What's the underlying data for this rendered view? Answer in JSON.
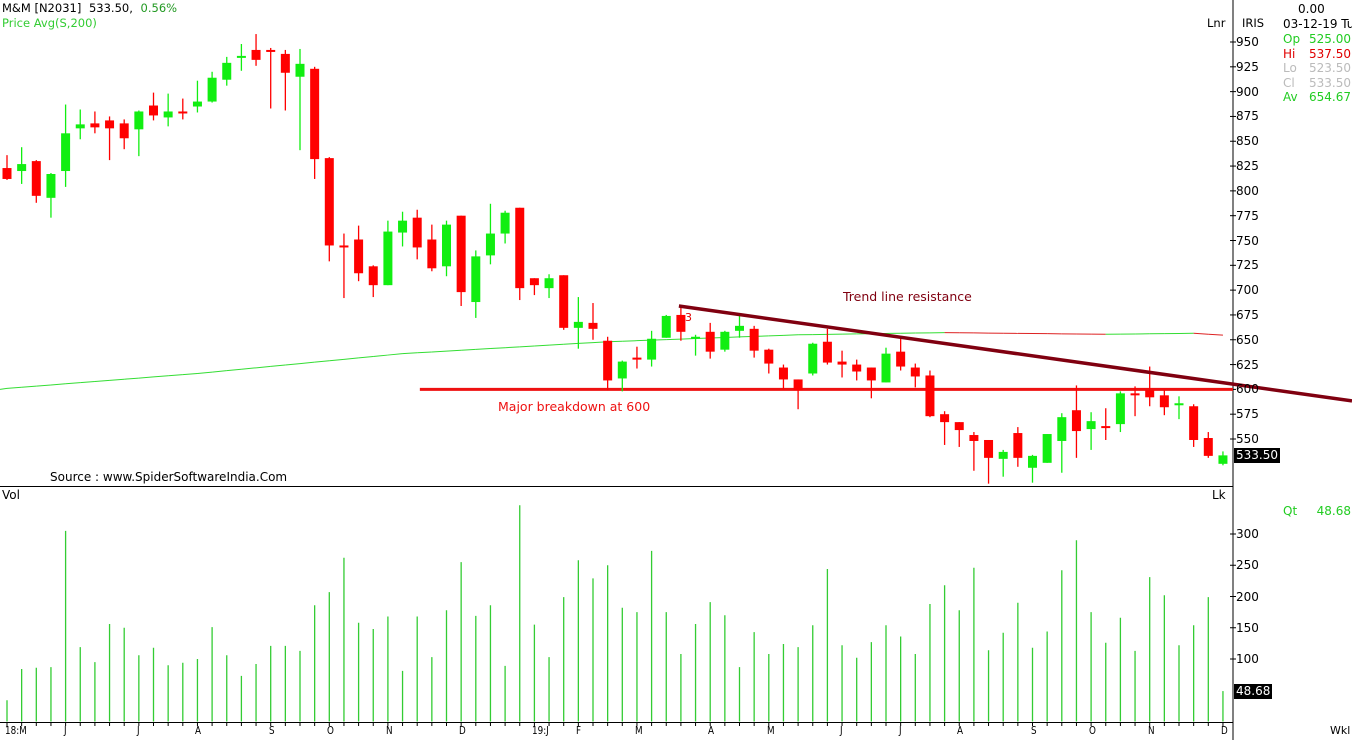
{
  "header": {
    "symbol": "M&M [N2031]",
    "last": "533.50,",
    "change": "0.56%",
    "indicator": "Price  Avg(S,200)"
  },
  "right_panel": {
    "scale_label": "Lnr",
    "chart_name": "IRIS",
    "value_top": "0.00",
    "date": "03-12-19 Tu",
    "ohlc": [
      {
        "label": "Op",
        "value": "525.00",
        "color": "#22cc22"
      },
      {
        "label": "Hi",
        "value": "537.50",
        "color": "#e00000"
      },
      {
        "label": "Lo",
        "value": "523.50",
        "color": "#bbbbbb"
      },
      {
        "label": "Cl",
        "value": "533.50",
        "color": "#bbbbbb"
      },
      {
        "label": "Av",
        "value": "654.67",
        "color": "#22cc22"
      }
    ],
    "last_price_box": "533.50",
    "volume_scale_label": "Lk",
    "qty_label": "Qt",
    "qty_value": "48.68",
    "last_volume_box": "48.68",
    "period_label": "Wkl"
  },
  "volume_panel": {
    "title": "Vol"
  },
  "annotations": {
    "source": "Source : www.SpiderSoftwareIndia.Com",
    "trend_label": "Trend line resistance",
    "breakdown_label": "Major breakdown at 600",
    "marker": "3"
  },
  "colors": {
    "up": "#11ee11",
    "down": "#ff0000",
    "trend": "#800010",
    "breakdown": "#ee1111",
    "ma_up": "#33dd33",
    "ma_down": "#dd2222",
    "volume": "#33cc33"
  },
  "chart_data": {
    "type": "candlestick",
    "title": "M&M [N2031] weekly",
    "price_axis": {
      "ylim": [
        510,
        960
      ],
      "ticks": [
        950,
        925,
        900,
        875,
        850,
        825,
        800,
        775,
        750,
        725,
        700,
        675,
        650,
        625,
        600,
        575,
        550
      ]
    },
    "volume_axis": {
      "ylim": [
        0,
        350
      ],
      "ticks": [
        300,
        250,
        200,
        150,
        100
      ]
    },
    "x_labels": [
      {
        "label": "18:M",
        "index": 0
      },
      {
        "label": "J",
        "index": 4
      },
      {
        "label": "J",
        "index": 9
      },
      {
        "label": "A",
        "index": 13
      },
      {
        "label": "S",
        "index": 18
      },
      {
        "label": "O",
        "index": 22
      },
      {
        "label": "N",
        "index": 26
      },
      {
        "label": "D",
        "index": 31
      },
      {
        "label": "19:J",
        "index": 36
      },
      {
        "label": "F",
        "index": 39
      },
      {
        "label": "M",
        "index": 43
      },
      {
        "label": "A",
        "index": 48
      },
      {
        "label": "M",
        "index": 52
      },
      {
        "label": "J",
        "index": 57
      },
      {
        "label": "J",
        "index": 61
      },
      {
        "label": "A",
        "index": 65
      },
      {
        "label": "S",
        "index": 70
      },
      {
        "label": "O",
        "index": 74
      },
      {
        "label": "N",
        "index": 78
      },
      {
        "label": "D",
        "index": 83
      }
    ],
    "ohlc": [
      [
        823,
        836,
        811,
        812
      ],
      [
        820,
        844,
        807,
        827
      ],
      [
        830,
        831,
        788,
        795
      ],
      [
        793,
        818,
        773,
        817
      ],
      [
        820,
        887,
        804,
        858
      ],
      [
        863,
        882,
        852,
        867
      ],
      [
        868,
        880,
        858,
        864
      ],
      [
        871,
        875,
        831,
        863
      ],
      [
        868,
        872,
        842,
        853
      ],
      [
        862,
        881,
        835,
        880
      ],
      [
        886,
        899,
        871,
        876
      ],
      [
        874,
        898,
        865,
        880
      ],
      [
        880,
        893,
        872,
        879
      ],
      [
        885,
        911,
        879,
        890
      ],
      [
        890,
        920,
        889,
        914
      ],
      [
        912,
        935,
        906,
        929
      ],
      [
        934,
        948,
        921,
        936
      ],
      [
        942,
        958,
        926,
        932
      ],
      [
        942,
        944,
        883,
        940
      ],
      [
        938,
        942,
        881,
        919
      ],
      [
        915,
        943,
        841,
        928
      ],
      [
        923,
        925,
        812,
        832
      ],
      [
        833,
        834,
        729,
        745
      ],
      [
        745,
        757,
        692,
        744
      ],
      [
        751,
        765,
        709,
        717
      ],
      [
        724,
        725,
        693,
        705
      ],
      [
        705,
        770,
        705,
        759
      ],
      [
        758,
        779,
        744,
        770
      ],
      [
        773,
        781,
        731,
        743
      ],
      [
        751,
        766,
        719,
        722
      ],
      [
        724,
        770,
        714,
        766
      ],
      [
        775,
        775,
        684,
        698
      ],
      [
        688,
        740,
        672,
        734
      ],
      [
        735,
        787,
        726,
        757
      ],
      [
        757,
        780,
        747,
        778
      ],
      [
        783,
        783,
        690,
        702
      ],
      [
        712,
        712,
        695,
        705
      ],
      [
        702,
        716,
        692,
        712
      ],
      [
        715,
        715,
        660,
        662
      ],
      [
        662,
        693,
        641,
        668
      ],
      [
        667,
        687,
        650,
        661
      ],
      [
        649,
        653,
        599,
        609
      ],
      [
        611,
        629,
        598,
        628
      ],
      [
        632,
        643,
        621,
        631
      ],
      [
        630,
        659,
        623,
        651
      ],
      [
        652,
        675,
        652,
        674
      ],
      [
        675,
        684,
        649,
        658
      ],
      [
        652,
        655,
        634,
        653
      ],
      [
        658,
        667,
        631,
        638
      ],
      [
        640,
        659,
        638,
        658
      ],
      [
        659,
        674,
        652,
        664
      ],
      [
        661,
        664,
        632,
        639
      ],
      [
        640,
        641,
        616,
        626
      ],
      [
        622,
        625,
        600,
        610
      ],
      [
        610,
        610,
        580,
        599
      ],
      [
        616,
        647,
        614,
        646
      ],
      [
        648,
        661,
        625,
        627
      ],
      [
        628,
        639,
        612,
        625
      ],
      [
        625,
        630,
        609,
        618
      ],
      [
        622,
        622,
        591,
        609
      ],
      [
        607,
        642,
        607,
        636
      ],
      [
        638,
        653,
        619,
        623
      ],
      [
        622,
        626,
        602,
        613
      ],
      [
        614,
        619,
        572,
        573
      ],
      [
        575,
        578,
        544,
        567
      ],
      [
        567,
        567,
        542,
        559
      ],
      [
        554,
        557,
        518,
        548
      ],
      [
        549,
        549,
        505,
        531
      ],
      [
        530,
        539,
        512,
        537
      ],
      [
        556,
        562,
        522,
        531
      ],
      [
        521,
        534,
        506,
        533
      ],
      [
        526,
        555,
        526,
        555
      ],
      [
        548,
        576,
        516,
        572
      ],
      [
        579,
        604,
        531,
        558
      ],
      [
        560,
        577,
        539,
        568
      ],
      [
        563,
        581,
        549,
        562
      ],
      [
        565,
        598,
        557,
        596
      ],
      [
        596,
        603,
        573,
        594
      ],
      [
        599,
        623,
        583,
        592
      ],
      [
        594,
        599,
        574,
        582
      ],
      [
        585,
        593,
        570,
        586
      ],
      [
        583,
        585,
        542,
        549
      ],
      [
        551,
        557,
        531,
        533
      ],
      [
        525,
        537.5,
        523.5,
        533.5
      ]
    ],
    "volume": [
      34,
      84,
      86,
      87,
      305,
      119,
      95,
      156,
      150,
      106,
      118,
      90,
      94,
      100,
      151,
      106,
      73,
      92,
      121,
      121,
      113,
      186,
      207,
      262,
      158,
      148,
      168,
      81,
      168,
      103,
      178,
      255,
      169,
      186,
      89,
      346,
      155,
      103,
      199,
      258,
      229,
      250,
      182,
      175,
      273,
      175,
      108,
      156,
      191,
      170,
      87,
      143,
      108,
      124,
      119,
      154,
      244,
      122,
      102,
      127,
      154,
      136,
      108,
      188,
      218,
      178,
      246,
      114,
      142,
      190,
      118,
      144,
      242,
      290,
      175,
      126,
      166,
      113,
      231,
      202,
      122,
      154,
      199,
      48.68
    ],
    "ma200_anchors": [
      [
        0,
        601
      ],
      [
        13,
        616
      ],
      [
        27,
        636
      ],
      [
        41,
        648
      ],
      [
        54,
        655
      ],
      [
        64,
        657.2
      ],
      [
        75,
        655.5
      ],
      [
        81,
        656.5
      ],
      [
        83,
        654.67
      ]
    ],
    "trendline": {
      "from": {
        "index": 46,
        "price": 684
      },
      "to": {
        "index": 83,
        "price": 607
      }
    },
    "breakdown_line": {
      "from_index": 29,
      "price": 600
    }
  }
}
